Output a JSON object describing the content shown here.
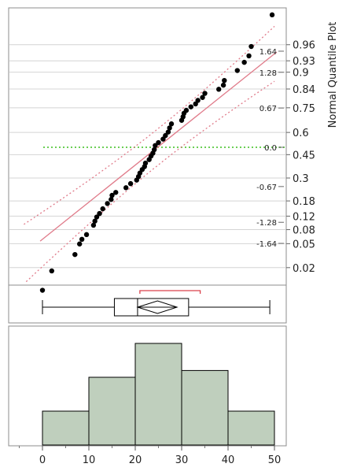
{
  "chart_data": [
    {
      "type": "scatter",
      "title": "",
      "right_axis_title": "Normal Quantile Plot",
      "xlim": [
        -5,
        53
      ],
      "probability_ticks": [
        "0.96",
        "0.93",
        "0.9",
        "0.84",
        "0.75",
        "0.6",
        "0.45",
        "0.3",
        "0.18",
        "0.12",
        "0.08",
        "0.05",
        "0.02"
      ],
      "z_ticks": [
        "1.64",
        "1.28",
        "0.67",
        "0.0",
        "-0.67",
        "-1.28",
        "-1.64"
      ],
      "reference_line": {
        "description": "normal fit",
        "color": "#e07b8a"
      },
      "confidence_bands": {
        "style": "dotted",
        "color": "#e07b8a"
      },
      "zero_line": {
        "style": "dotted",
        "color": "#6ccf55"
      },
      "points": [
        {
          "x": 0.0,
          "z": -2.44
        },
        {
          "x": 2.0,
          "z": -2.11
        },
        {
          "x": 7.0,
          "z": -1.83
        },
        {
          "x": 8.0,
          "z": -1.65
        },
        {
          "x": 8.5,
          "z": -1.57
        },
        {
          "x": 9.5,
          "z": -1.49
        },
        {
          "x": 11.0,
          "z": -1.33
        },
        {
          "x": 11.3,
          "z": -1.26
        },
        {
          "x": 11.7,
          "z": -1.19
        },
        {
          "x": 12.3,
          "z": -1.13
        },
        {
          "x": 13.0,
          "z": -1.05
        },
        {
          "x": 14.0,
          "z": -0.96
        },
        {
          "x": 14.8,
          "z": -0.89
        },
        {
          "x": 15.0,
          "z": -0.82
        },
        {
          "x": 15.8,
          "z": -0.77
        },
        {
          "x": 18.0,
          "z": -0.69
        },
        {
          "x": 19.0,
          "z": -0.62
        },
        {
          "x": 20.3,
          "z": -0.56
        },
        {
          "x": 20.7,
          "z": -0.5
        },
        {
          "x": 21.0,
          "z": -0.44
        },
        {
          "x": 21.5,
          "z": -0.38
        },
        {
          "x": 22.0,
          "z": -0.33
        },
        {
          "x": 22.2,
          "z": -0.27
        },
        {
          "x": 23.0,
          "z": -0.21
        },
        {
          "x": 23.4,
          "z": -0.15
        },
        {
          "x": 23.8,
          "z": -0.1
        },
        {
          "x": 24.1,
          "z": -0.04
        },
        {
          "x": 24.3,
          "z": 0.03
        },
        {
          "x": 25.0,
          "z": 0.08
        },
        {
          "x": 26.0,
          "z": 0.14
        },
        {
          "x": 26.5,
          "z": 0.2
        },
        {
          "x": 27.1,
          "z": 0.26
        },
        {
          "x": 27.4,
          "z": 0.33
        },
        {
          "x": 27.8,
          "z": 0.4
        },
        {
          "x": 30.0,
          "z": 0.46
        },
        {
          "x": 30.3,
          "z": 0.52
        },
        {
          "x": 30.5,
          "z": 0.58
        },
        {
          "x": 31.0,
          "z": 0.63
        },
        {
          "x": 32.0,
          "z": 0.69
        },
        {
          "x": 33.0,
          "z": 0.74
        },
        {
          "x": 33.5,
          "z": 0.8
        },
        {
          "x": 34.5,
          "z": 0.85
        },
        {
          "x": 35.0,
          "z": 0.92
        },
        {
          "x": 38.0,
          "z": 0.99
        },
        {
          "x": 39.0,
          "z": 1.06
        },
        {
          "x": 39.2,
          "z": 1.14
        },
        {
          "x": 42.0,
          "z": 1.31
        },
        {
          "x": 43.5,
          "z": 1.45
        },
        {
          "x": 44.5,
          "z": 1.56
        },
        {
          "x": 45.0,
          "z": 1.72
        },
        {
          "x": 49.5,
          "z": 2.26
        }
      ]
    },
    {
      "type": "box",
      "min": 0,
      "q1": 15.5,
      "median": 20.5,
      "q3": 31.5,
      "max": 49,
      "mean": 24.8,
      "mean_ci": [
        20.5,
        29.0
      ],
      "shortest_half": [
        21,
        34
      ]
    },
    {
      "type": "bar",
      "subtype": "histogram",
      "bin_edges": [
        0,
        10,
        20,
        30,
        40,
        50
      ],
      "values": [
        5,
        10,
        15,
        11,
        5
      ],
      "bar_color": "#bfcfbd",
      "x_ticks": [
        "0",
        "10",
        "20",
        "30",
        "40",
        "50"
      ]
    }
  ]
}
